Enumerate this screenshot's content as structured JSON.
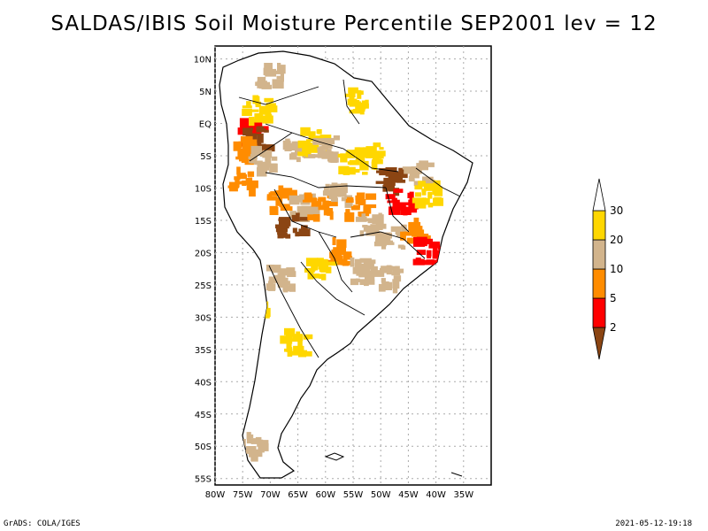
{
  "title": "SALDAS/IBIS Soil Moisture Percentile SEP2001 lev = 12",
  "footer": {
    "left": "GrADS: COLA/IGES",
    "right": "2021-05-12-19:18"
  },
  "chart_data": {
    "type": "heatmap",
    "title": "SALDAS/IBIS Soil Moisture Percentile SEP2001 lev = 12",
    "xlim": [
      -80,
      -30
    ],
    "ylim": [
      -56,
      12
    ],
    "x_ticks": [
      -80,
      -75,
      -70,
      -65,
      -60,
      -55,
      -50,
      -45,
      -40,
      -35
    ],
    "x_tick_labels": [
      "80W",
      "75W",
      "70W",
      "65W",
      "60W",
      "55W",
      "50W",
      "45W",
      "40W",
      "35W"
    ],
    "y_ticks": [
      10,
      5,
      0,
      -5,
      -10,
      -15,
      -20,
      -25,
      -30,
      -35,
      -40,
      -45,
      -50,
      -55
    ],
    "y_tick_labels": [
      "10N",
      "5N",
      "EQ",
      "5S",
      "10S",
      "15S",
      "20S",
      "25S",
      "30S",
      "35S",
      "40S",
      "45S",
      "50S",
      "55S"
    ],
    "grid": true,
    "colorbar": {
      "placement": "right",
      "bins": [
        {
          "label": "<2",
          "color": "#8b4513"
        },
        {
          "label": "2-5",
          "color": "#ff0000"
        },
        {
          "label": "5-10",
          "color": "#ff8c00"
        },
        {
          "label": "10-20",
          "color": "#d2b48c"
        },
        {
          "label": "20-30",
          "color": "#ffd700"
        },
        {
          "label": ">30",
          "color": "#ffffff"
        }
      ],
      "tick_labels": [
        "2",
        "5",
        "10",
        "20",
        "30"
      ]
    },
    "regions": [
      {
        "lon": -73,
        "lat": -1.5,
        "category": "2-5"
      },
      {
        "lon": -72,
        "lat": -2.5,
        "category": "<2"
      },
      {
        "lon": -74,
        "lat": -4,
        "category": "5-10"
      },
      {
        "lon": -75,
        "lat": -9,
        "category": "5-10"
      },
      {
        "lon": -71,
        "lat": -6,
        "category": "10-20"
      },
      {
        "lon": -65,
        "lat": -4,
        "category": "10-20"
      },
      {
        "lon": -62,
        "lat": -3,
        "category": "20-30"
      },
      {
        "lon": -60,
        "lat": -4,
        "category": "10-20"
      },
      {
        "lon": -55,
        "lat": -6,
        "category": "20-30"
      },
      {
        "lon": -52,
        "lat": -5,
        "category": "20-30"
      },
      {
        "lon": -54,
        "lat": 3.5,
        "category": "20-30"
      },
      {
        "lon": -72,
        "lat": 2,
        "category": "20-30"
      },
      {
        "lon": -70,
        "lat": 7,
        "category": "10-20"
      },
      {
        "lon": -68,
        "lat": -12,
        "category": "5-10"
      },
      {
        "lon": -64,
        "lat": -13,
        "category": "10-20"
      },
      {
        "lon": -66,
        "lat": -16,
        "category": "<2"
      },
      {
        "lon": -61,
        "lat": -13,
        "category": "5-10"
      },
      {
        "lon": -58,
        "lat": -11,
        "category": "10-20"
      },
      {
        "lon": -54,
        "lat": -13,
        "category": "5-10"
      },
      {
        "lon": -52,
        "lat": -16,
        "category": "10-20"
      },
      {
        "lon": -48,
        "lat": -9,
        "category": "<2"
      },
      {
        "lon": -46,
        "lat": -12,
        "category": "2-5"
      },
      {
        "lon": -43,
        "lat": -8,
        "category": "10-20"
      },
      {
        "lon": -41,
        "lat": -11,
        "category": "20-30"
      },
      {
        "lon": -48,
        "lat": -18,
        "category": "10-20"
      },
      {
        "lon": -44,
        "lat": -17,
        "category": "5-10"
      },
      {
        "lon": -41,
        "lat": -20,
        "category": "2-5"
      },
      {
        "lon": -57,
        "lat": -20,
        "category": "5-10"
      },
      {
        "lon": -61,
        "lat": -22,
        "category": "20-30"
      },
      {
        "lon": -53,
        "lat": -23,
        "category": "10-20"
      },
      {
        "lon": -49,
        "lat": -24,
        "category": "10-20"
      },
      {
        "lon": -68,
        "lat": -24,
        "category": "10-20"
      },
      {
        "lon": -65,
        "lat": -34,
        "category": "20-30"
      },
      {
        "lon": -72,
        "lat": -28,
        "category": "20-30"
      },
      {
        "lon": -73,
        "lat": -50,
        "category": "10-20"
      }
    ]
  }
}
